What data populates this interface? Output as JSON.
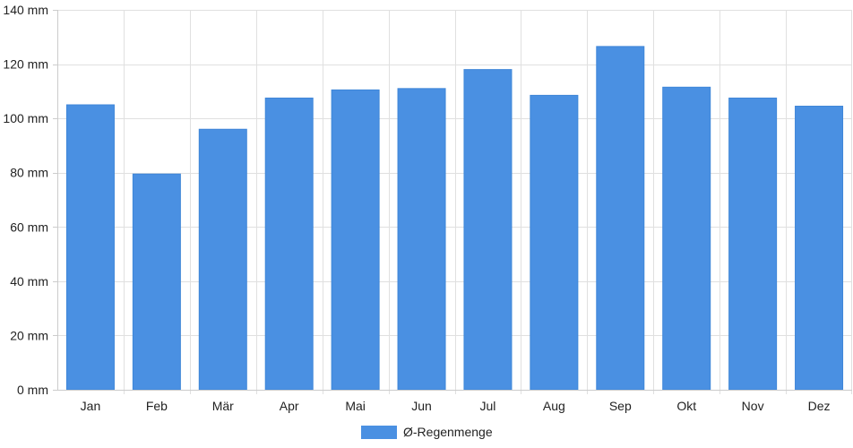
{
  "chart_data": {
    "type": "bar",
    "categories": [
      "Jan",
      "Feb",
      "Mär",
      "Apr",
      "Mai",
      "Jun",
      "Jul",
      "Aug",
      "Sep",
      "Okt",
      "Nov",
      "Dez"
    ],
    "series": [
      {
        "name": "Ø-Regenmenge",
        "values": [
          105,
          79.5,
          96,
          107.5,
          110.5,
          111,
          118,
          108.5,
          126.5,
          111.5,
          107.5,
          104.5
        ],
        "color": "#4a90e2"
      }
    ],
    "y_ticks": [
      "0 mm",
      "20 mm",
      "40 mm",
      "60 mm",
      "80 mm",
      "100 mm",
      "120 mm",
      "140 mm"
    ],
    "ylim": [
      0,
      140
    ],
    "grid": true,
    "legend_position": "bottom-center"
  }
}
